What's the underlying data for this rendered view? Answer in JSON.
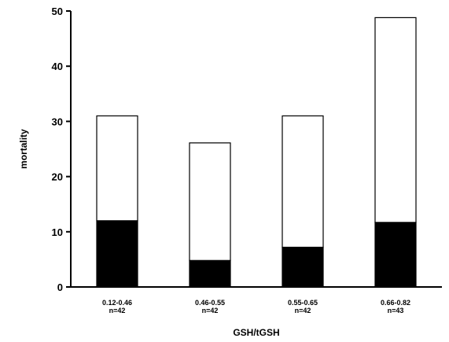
{
  "chart_data": {
    "type": "bar",
    "stacked": true,
    "categories": [
      "0.12-0.46",
      "0.46-0.55",
      "0.55-0.65",
      "0.66-0.82"
    ],
    "category_counts": [
      "n=42",
      "n=42",
      "n=42",
      "n=43"
    ],
    "series": [
      {
        "values": [
          12,
          4.8,
          7.2,
          11.7
        ],
        "color": "#000000"
      },
      {
        "values": [
          19,
          21.3,
          23.8,
          37.1
        ],
        "color": "#ffffff"
      }
    ],
    "totals": [
      31,
      26.1,
      31,
      48.8
    ],
    "title": "",
    "xlabel": "GSH/tGSH",
    "ylabel": "mortality",
    "ylim": [
      0,
      50
    ],
    "yticks": [
      0,
      10,
      20,
      30,
      40,
      50
    ],
    "grid": false,
    "legend": "none"
  }
}
